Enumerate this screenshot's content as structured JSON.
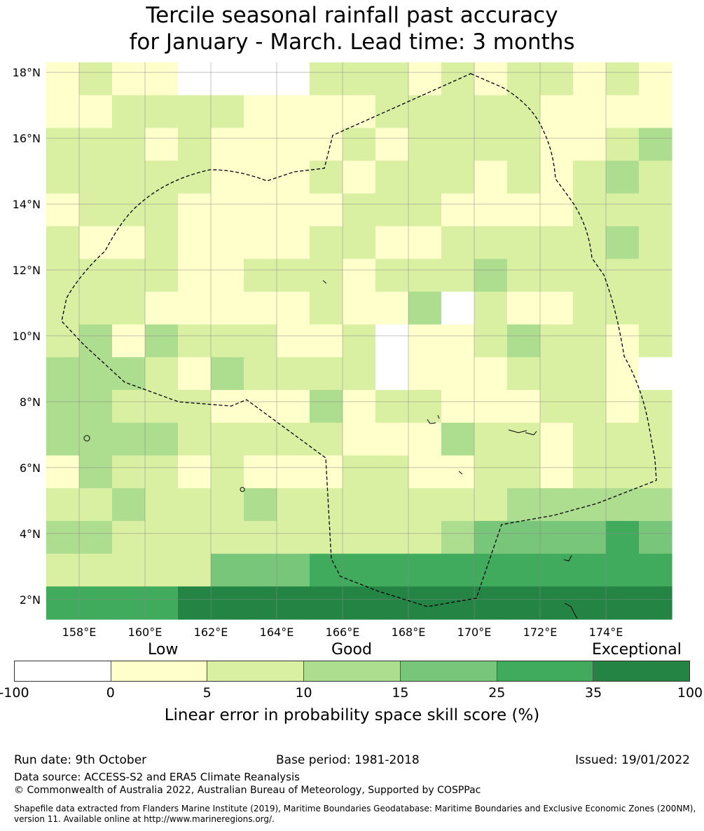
{
  "title": {
    "line1": "Tercile seasonal rainfall past accuracy",
    "line2": "for January - March. Lead time: 3 months"
  },
  "map": {
    "lon_range": [
      157,
      176
    ],
    "lat_range": [
      1.4,
      18.3
    ],
    "lon_ticks": [
      "158°E",
      "160°E",
      "162°E",
      "164°E",
      "166°E",
      "168°E",
      "170°E",
      "172°E",
      "174°E"
    ],
    "lat_ticks": [
      "18°N",
      "16°N",
      "14°N",
      "12°N",
      "10°N",
      "8°N",
      "6°N",
      "4°N",
      "2°N"
    ],
    "grid": true,
    "boundary": "dashed EEZ outline",
    "colors": {
      "no_skill": "#ffffff",
      "0-5": "#ffffcc",
      "5-10": "#d9f0a3",
      "10-15": "#addd8e",
      "15-25": "#78c679",
      "25-35": "#41ab5d",
      "35-100": "#238443"
    }
  },
  "colorbar": {
    "category_labels": [
      "Low",
      "Good",
      "Exceptional"
    ],
    "ticks": [
      "-100",
      "0",
      "5",
      "10",
      "15",
      "25",
      "35",
      "100"
    ],
    "colors": [
      "#ffffff",
      "#ffffcc",
      "#d9f0a3",
      "#addd8e",
      "#78c679",
      "#41ab5d",
      "#238443"
    ],
    "label": "Linear error in probability space skill score (%)"
  },
  "footer": {
    "run_date": "Run date: 9th October",
    "base_period": "Base period: 1981-2018",
    "issued": "Issued: 19/01/2022",
    "data_source": "Data source: ACCESS-S2 and ERA5 Climate Reanalysis",
    "copyright": "© Commonwealth of Australia 2022, Australian Bureau of Meteorology, Supported by COSPPac",
    "shapefile_line1": "Shapefile data extracted from Flanders Marine Institute (2019), Maritime Boundaries Geodatabase: Maritime Boundaries and Exclusive Economic Zones (200NM),",
    "shapefile_line2": "version 11. Available online at http://www.marineregions.org/."
  }
}
